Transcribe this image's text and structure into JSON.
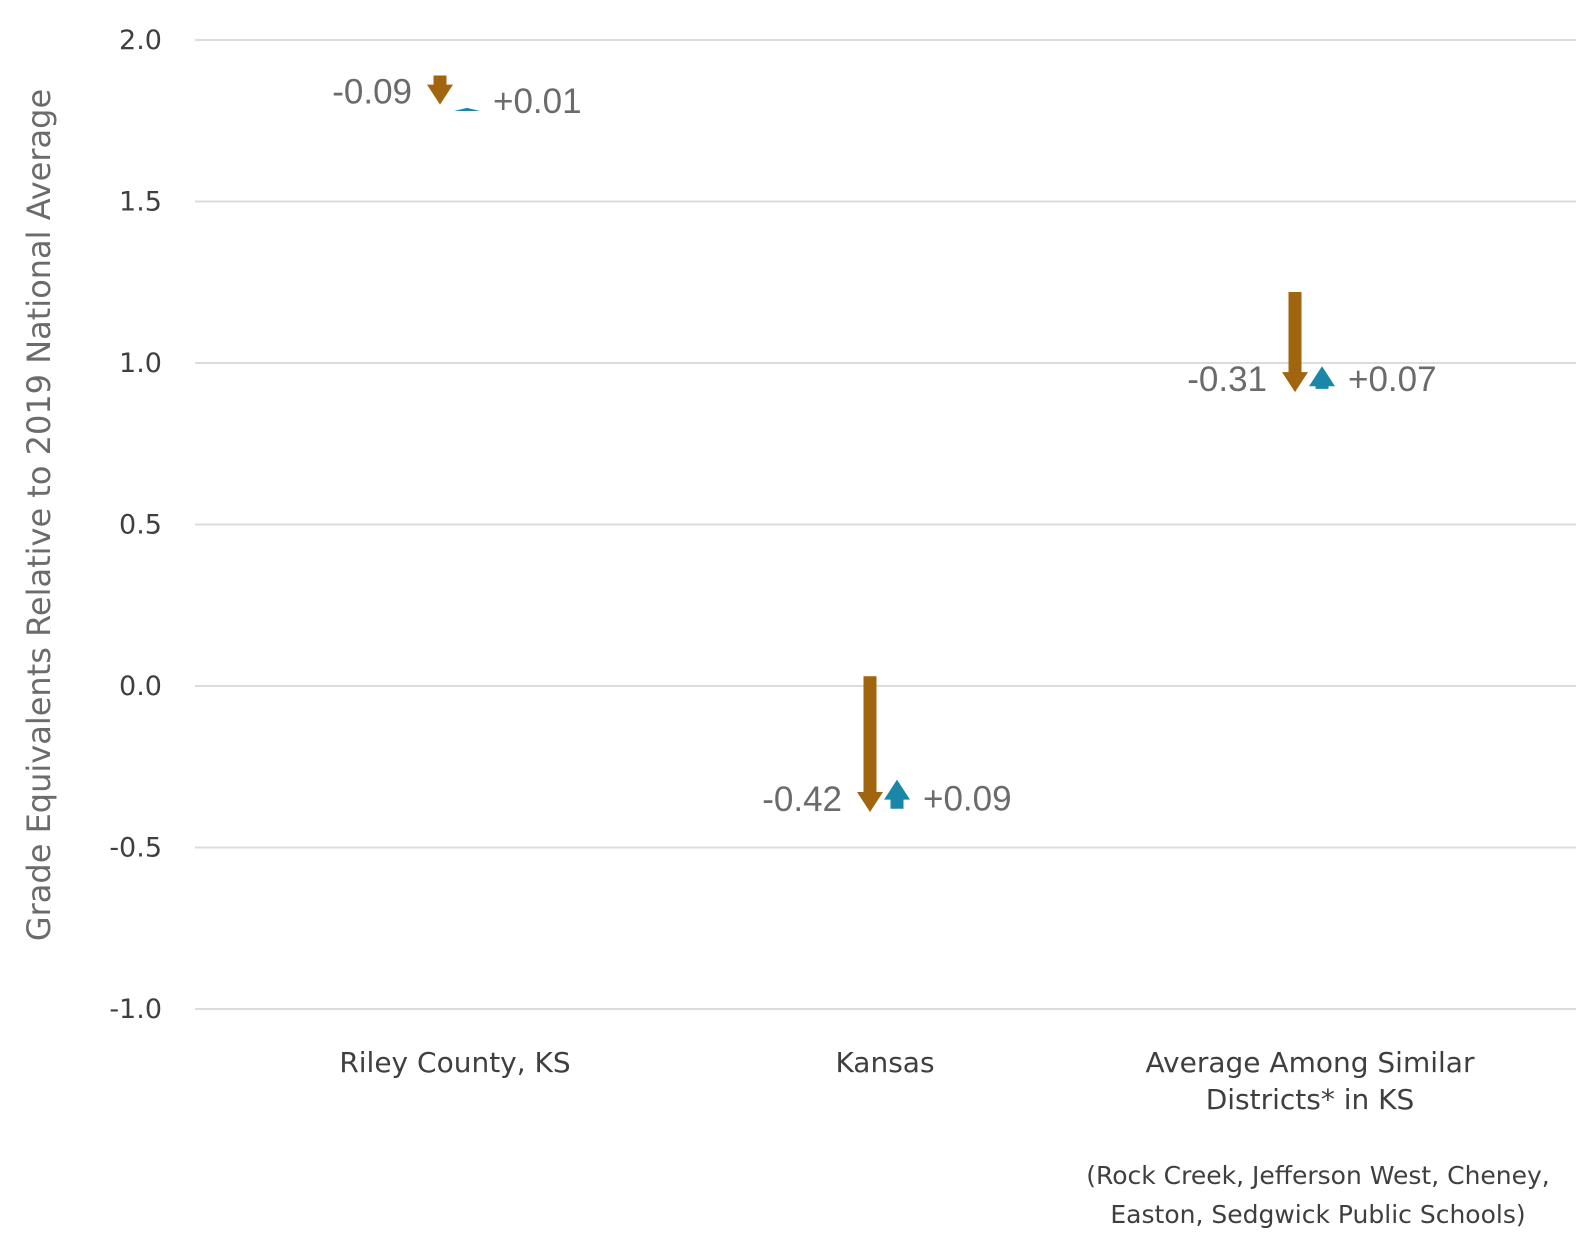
{
  "chart_data": {
    "type": "arrow-change",
    "ylabel": "Grade Equivalents Relative to 2019 National Average",
    "ylim": [
      -1.0,
      2.0
    ],
    "yticks": [
      "2.0",
      "1.5",
      "1.0",
      "0.5",
      "0.0",
      "-0.5",
      "-1.0"
    ],
    "grid": true,
    "colors": {
      "decline": "#a0650e",
      "recovery": "#1a87a8",
      "grid": "#dcdcdc"
    },
    "categories": [
      {
        "label_lines": [
          "Riley County, KS"
        ],
        "decline": {
          "start": 1.89,
          "end": 1.8,
          "label": "-0.09"
        },
        "recovery": {
          "start": 1.78,
          "end": 1.79,
          "label": "+0.01"
        }
      },
      {
        "label_lines": [
          "Kansas"
        ],
        "decline": {
          "start": 0.03,
          "end": -0.39,
          "label": "-0.42"
        },
        "recovery": {
          "start": -0.38,
          "end": -0.29,
          "label": "+0.09"
        }
      },
      {
        "label_lines": [
          "Average Among Similar",
          "Districts* in KS"
        ],
        "decline": {
          "start": 1.22,
          "end": 0.91,
          "label": "-0.31"
        },
        "recovery": {
          "start": 0.92,
          "end": 0.99,
          "label": "+0.07"
        }
      }
    ],
    "footnote_lines": [
      "(Rock Creek, Jefferson West, Cheney,",
      "Easton, Sedgwick Public Schools)"
    ]
  }
}
